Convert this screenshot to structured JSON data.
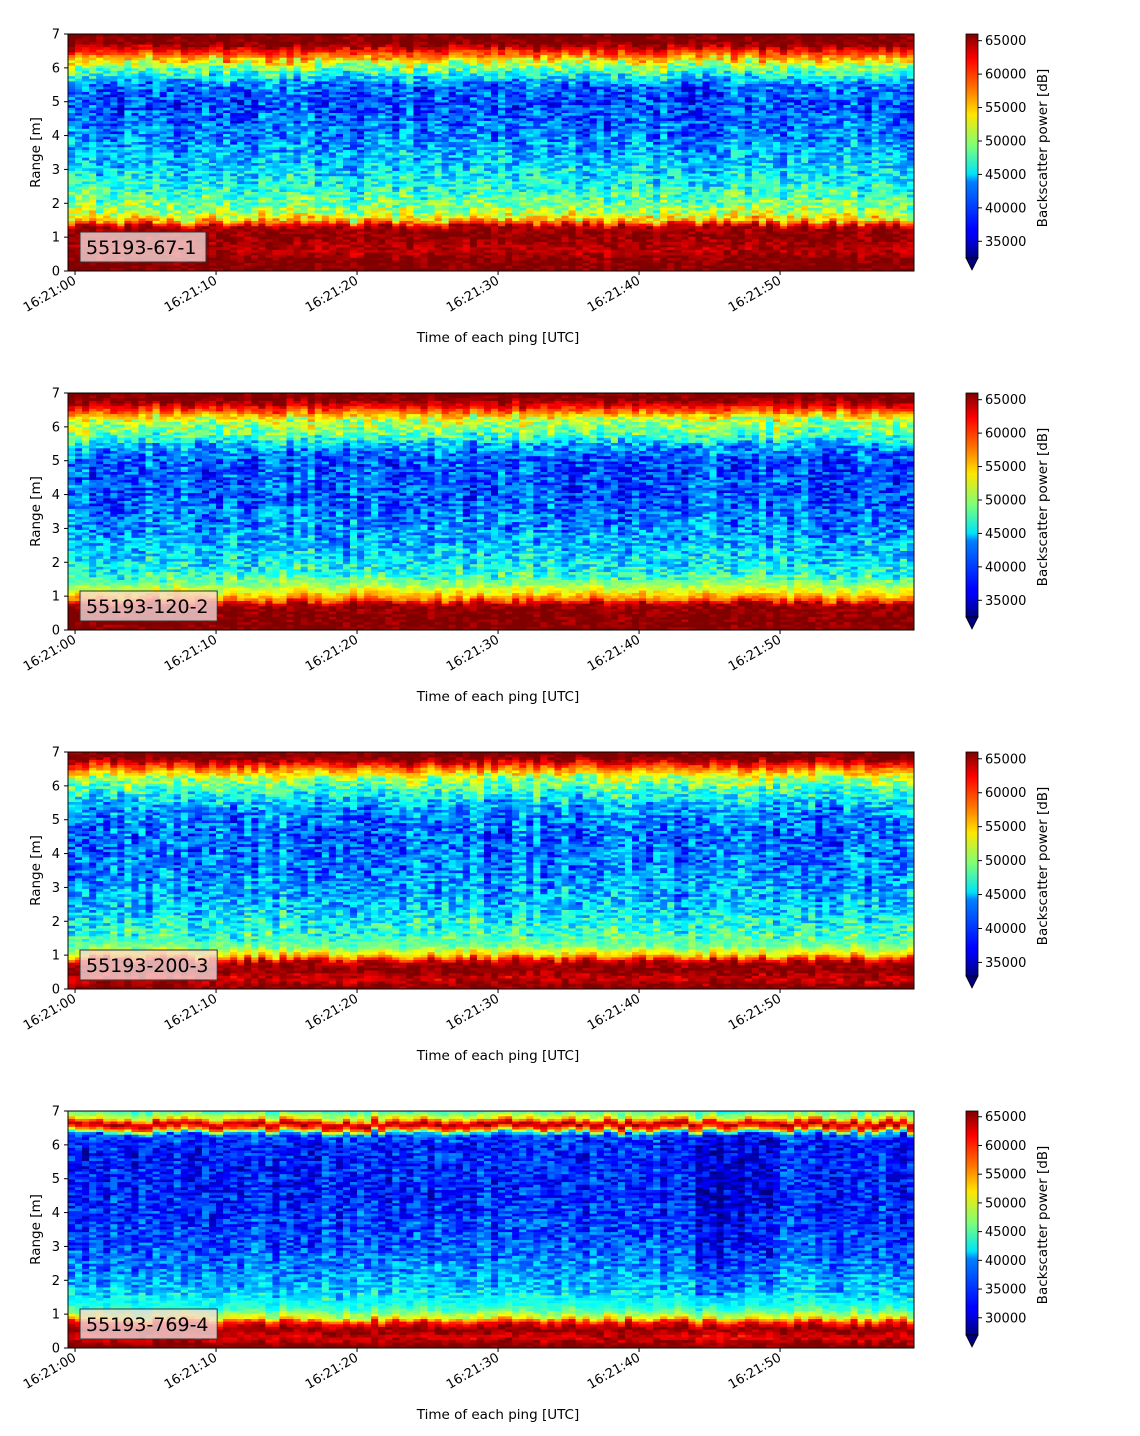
{
  "chart_data": [
    {
      "type": "heatmap",
      "panel_label": "55193-67-1",
      "xlabel": "Time of each ping [UTC]",
      "ylabel": "Range [m]",
      "x_range": [
        "16:21:00",
        "16:21:59"
      ],
      "ylim": [
        0,
        7
      ],
      "x_ticks": [
        "16:21:00",
        "16:21:10",
        "16:21:20",
        "16:21:30",
        "16:21:40",
        "16:21:50"
      ],
      "y_ticks": [
        "0",
        "1",
        "2",
        "3",
        "4",
        "5",
        "6",
        "7"
      ],
      "colormap": "jet",
      "colorbar": {
        "label": "Backscatter power [dB]",
        "vmin": 32500,
        "vmax": 66000,
        "ticks": [
          35000,
          40000,
          45000,
          50000,
          55000,
          60000,
          65000
        ],
        "tick_labels": [
          "35000",
          "40000",
          "45000",
          "50000",
          "55000",
          "60000",
          "65000"
        ],
        "extend": "min"
      },
      "profile_by_range": [
        {
          "range_m": 0.1,
          "power": 66000
        },
        {
          "range_m": 0.3,
          "power": 66000
        },
        {
          "range_m": 0.6,
          "power": 64000
        },
        {
          "range_m": 1.0,
          "power": 65500
        },
        {
          "range_m": 1.3,
          "power": 65000
        },
        {
          "range_m": 1.5,
          "power": 55000
        },
        {
          "range_m": 1.8,
          "power": 50000
        },
        {
          "range_m": 2.3,
          "power": 47000
        },
        {
          "range_m": 3.0,
          "power": 44000
        },
        {
          "range_m": 4.0,
          "power": 41000
        },
        {
          "range_m": 5.0,
          "power": 39000
        },
        {
          "range_m": 5.5,
          "power": 40500
        },
        {
          "range_m": 5.8,
          "power": 46000
        },
        {
          "range_m": 6.1,
          "power": 51000
        },
        {
          "range_m": 6.4,
          "power": 59000
        },
        {
          "range_m": 6.7,
          "power": 66000
        },
        {
          "range_m": 7.0,
          "power": 66000
        }
      ]
    },
    {
      "type": "heatmap",
      "panel_label": "55193-120-2",
      "xlabel": "Time of each ping [UTC]",
      "ylabel": "Range [m]",
      "x_range": [
        "16:21:00",
        "16:21:59"
      ],
      "ylim": [
        0,
        7
      ],
      "x_ticks": [
        "16:21:00",
        "16:21:10",
        "16:21:20",
        "16:21:30",
        "16:21:40",
        "16:21:50"
      ],
      "y_ticks": [
        "0",
        "1",
        "2",
        "3",
        "4",
        "5",
        "6",
        "7"
      ],
      "colormap": "jet",
      "colorbar": {
        "label": "Backscatter power [dB]",
        "vmin": 32500,
        "vmax": 66000,
        "ticks": [
          35000,
          40000,
          45000,
          50000,
          55000,
          60000,
          65000
        ],
        "tick_labels": [
          "35000",
          "40000",
          "45000",
          "50000",
          "55000",
          "60000",
          "65000"
        ],
        "extend": "min"
      },
      "profile_by_range": [
        {
          "range_m": 0.1,
          "power": 66000
        },
        {
          "range_m": 0.4,
          "power": 66000
        },
        {
          "range_m": 0.75,
          "power": 65000
        },
        {
          "range_m": 0.9,
          "power": 58000
        },
        {
          "range_m": 1.2,
          "power": 52000
        },
        {
          "range_m": 1.6,
          "power": 46500
        },
        {
          "range_m": 2.2,
          "power": 44000
        },
        {
          "range_m": 3.0,
          "power": 41500
        },
        {
          "range_m": 4.0,
          "power": 39500
        },
        {
          "range_m": 5.0,
          "power": 39500
        },
        {
          "range_m": 5.4,
          "power": 42000
        },
        {
          "range_m": 5.8,
          "power": 48500
        },
        {
          "range_m": 6.2,
          "power": 51000
        },
        {
          "range_m": 6.5,
          "power": 60000
        },
        {
          "range_m": 6.8,
          "power": 66000
        },
        {
          "range_m": 7.0,
          "power": 66000
        }
      ]
    },
    {
      "type": "heatmap",
      "panel_label": "55193-200-3",
      "xlabel": "Time of each ping [UTC]",
      "ylabel": "Range [m]",
      "x_range": [
        "16:21:00",
        "16:21:59"
      ],
      "ylim": [
        0,
        7
      ],
      "x_ticks": [
        "16:21:00",
        "16:21:10",
        "16:21:20",
        "16:21:30",
        "16:21:40",
        "16:21:50"
      ],
      "y_ticks": [
        "0",
        "1",
        "2",
        "3",
        "4",
        "5",
        "6",
        "7"
      ],
      "colormap": "jet",
      "colorbar": {
        "label": "Backscatter power [dB]",
        "vmin": 33000,
        "vmax": 66000,
        "ticks": [
          35000,
          40000,
          45000,
          50000,
          55000,
          60000,
          65000
        ],
        "tick_labels": [
          "35000",
          "40000",
          "45000",
          "50000",
          "55000",
          "60000",
          "65000"
        ],
        "extend": "min"
      },
      "profile_by_range": [
        {
          "range_m": 0.1,
          "power": 66000
        },
        {
          "range_m": 0.3,
          "power": 63000
        },
        {
          "range_m": 0.55,
          "power": 66000
        },
        {
          "range_m": 0.8,
          "power": 64000
        },
        {
          "range_m": 1.0,
          "power": 55000
        },
        {
          "range_m": 1.3,
          "power": 48500
        },
        {
          "range_m": 1.9,
          "power": 46000
        },
        {
          "range_m": 2.5,
          "power": 43500
        },
        {
          "range_m": 3.5,
          "power": 41500
        },
        {
          "range_m": 4.5,
          "power": 40500
        },
        {
          "range_m": 5.3,
          "power": 42000
        },
        {
          "range_m": 5.8,
          "power": 46500
        },
        {
          "range_m": 6.2,
          "power": 50500
        },
        {
          "range_m": 6.5,
          "power": 58000
        },
        {
          "range_m": 6.8,
          "power": 66000
        },
        {
          "range_m": 7.0,
          "power": 66000
        }
      ]
    },
    {
      "type": "heatmap",
      "panel_label": "55193-769-4",
      "xlabel": "Time of each ping [UTC]",
      "ylabel": "Range [m]",
      "x_range": [
        "16:21:00",
        "16:21:59"
      ],
      "ylim": [
        0,
        7
      ],
      "x_ticks": [
        "16:21:00",
        "16:21:10",
        "16:21:20",
        "16:21:30",
        "16:21:40",
        "16:21:50"
      ],
      "y_ticks": [
        "0",
        "1",
        "2",
        "3",
        "4",
        "5",
        "6",
        "7"
      ],
      "colormap": "jet",
      "colorbar": {
        "label": "Backscatter power [dB]",
        "vmin": 27000,
        "vmax": 66000,
        "ticks": [
          30000,
          35000,
          40000,
          45000,
          50000,
          55000,
          60000,
          65000
        ],
        "tick_labels": [
          "30000",
          "35000",
          "40000",
          "45000",
          "50000",
          "55000",
          "60000",
          "65000"
        ],
        "extend": "min"
      },
      "profile_by_range": [
        {
          "range_m": 0.1,
          "power": 66000
        },
        {
          "range_m": 0.3,
          "power": 62000
        },
        {
          "range_m": 0.55,
          "power": 66000
        },
        {
          "range_m": 0.75,
          "power": 60000
        },
        {
          "range_m": 0.9,
          "power": 50000
        },
        {
          "range_m": 1.2,
          "power": 43000
        },
        {
          "range_m": 1.8,
          "power": 39000
        },
        {
          "range_m": 3.0,
          "power": 35000
        },
        {
          "range_m": 4.5,
          "power": 33000
        },
        {
          "range_m": 6.0,
          "power": 33000
        },
        {
          "range_m": 6.3,
          "power": 35000
        },
        {
          "range_m": 6.45,
          "power": 56000
        },
        {
          "range_m": 6.6,
          "power": 65000
        },
        {
          "range_m": 6.8,
          "power": 50000
        },
        {
          "range_m": 7.0,
          "power": 44000
        }
      ]
    }
  ]
}
